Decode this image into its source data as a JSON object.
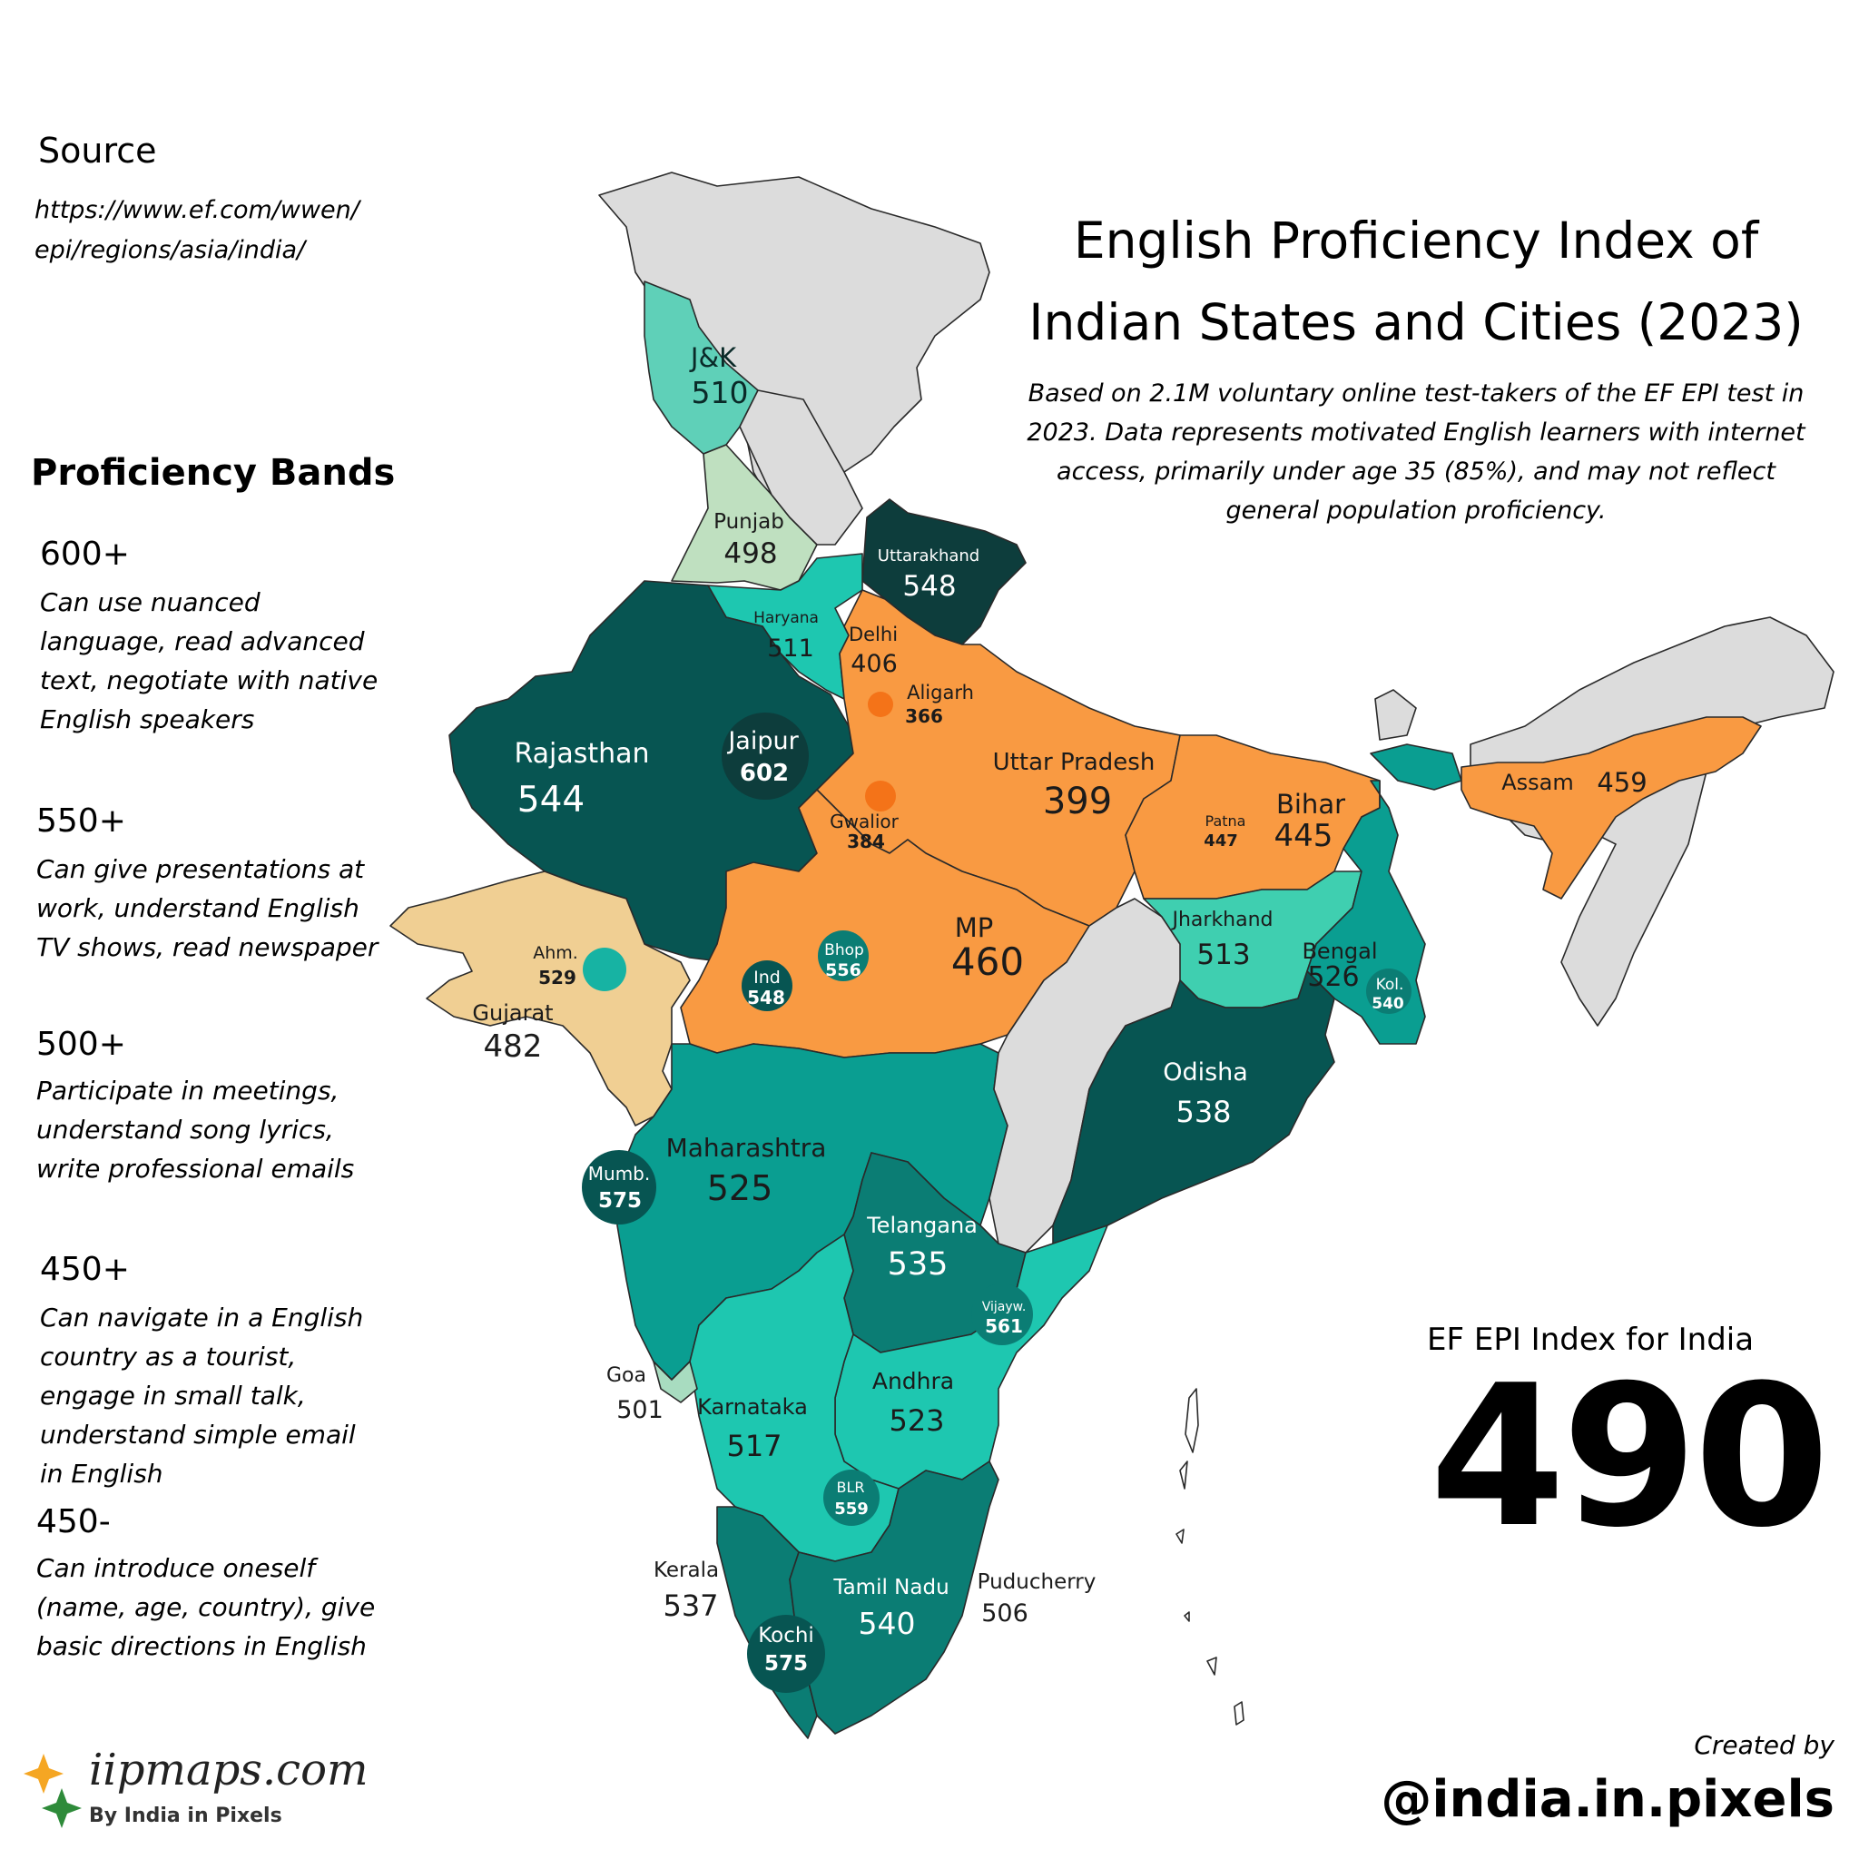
{
  "title": "English Proficiency Index of Indian States and Cities (2023)",
  "subtitle": "Based on 2.1M voluntary online test-takers of the EF EPI test in 2023. Data represents motivated English learners with internet access, primarily under age 35 (85%), and may not reflect general population proficiency.",
  "source": {
    "heading": "Source",
    "url": "https://www.ef.com/wwen/ epi/regions/asia/india/"
  },
  "bands": {
    "heading": "Proficiency Bands",
    "items": [
      {
        "level": "600+",
        "desc": "Can use nuanced language, read advanced text, negotiate with native English speakers"
      },
      {
        "level": "550+",
        "desc": "Can give presentations at work, understand English TV shows, read newspaper"
      },
      {
        "level": "500+",
        "desc": "Participate in meetings, understand song lyrics, write professional emails"
      },
      {
        "level": "450+",
        "desc": "Can navigate in a English country as a tourist, engage in small talk, understand simple email in English"
      },
      {
        "level": "450-",
        "desc": "Can introduce oneself (name, age, country), give basic directions in English"
      }
    ]
  },
  "colors": {
    "band_600": "#0d3d3c",
    "band_550": "#075552",
    "band_525": "#0a9e91",
    "band_500": "#1ec7b0",
    "band_500_light": "#5fd0b8",
    "punjab": "#bfe0c0",
    "gujarat": "#f0cf93",
    "band_450": "#f99a42",
    "aligarh_dot": "#f47318",
    "no_data": "#dcdcdc"
  },
  "india_index": {
    "label": "EF EPI Index for India",
    "value": "490"
  },
  "states": [
    {
      "name": "J&K",
      "score": "510"
    },
    {
      "name": "Punjab",
      "score": "498"
    },
    {
      "name": "Uttarakhand",
      "score": "548"
    },
    {
      "name": "Haryana",
      "score": "511"
    },
    {
      "name": "Delhi",
      "score": "406"
    },
    {
      "name": "Rajasthan",
      "score": "544"
    },
    {
      "name": "Uttar Pradesh",
      "score": "399"
    },
    {
      "name": "Bihar",
      "score": "445"
    },
    {
      "name": "Assam",
      "score": "459"
    },
    {
      "name": "Gujarat",
      "score": "482"
    },
    {
      "name": "MP",
      "score": "460"
    },
    {
      "name": "Jharkhand",
      "score": "513"
    },
    {
      "name": "Bengal",
      "score": "526"
    },
    {
      "name": "Odisha",
      "score": "538"
    },
    {
      "name": "Maharashtra",
      "score": "525"
    },
    {
      "name": "Telangana",
      "score": "535"
    },
    {
      "name": "Andhra",
      "score": "523"
    },
    {
      "name": "Karnataka",
      "score": "517"
    },
    {
      "name": "Goa",
      "score": "501"
    },
    {
      "name": "Kerala",
      "score": "537"
    },
    {
      "name": "Tamil Nadu",
      "score": "540"
    },
    {
      "name": "Puducherry",
      "score": "506"
    }
  ],
  "cities": [
    {
      "name": "Jaipur",
      "score": "602"
    },
    {
      "name": "Aligarh",
      "score": "366"
    },
    {
      "name": "Gwalior",
      "score": "384"
    },
    {
      "name": "Patna",
      "score": "447"
    },
    {
      "name": "Ahm.",
      "score": "529"
    },
    {
      "name": "Ind",
      "score": "548"
    },
    {
      "name": "Bhop",
      "score": "556"
    },
    {
      "name": "Kol.",
      "score": "540"
    },
    {
      "name": "Mumb.",
      "score": "575"
    },
    {
      "name": "Vijayw.",
      "score": "561"
    },
    {
      "name": "BLR",
      "score": "559"
    },
    {
      "name": "Kochi",
      "score": "575"
    }
  ],
  "credit": {
    "created_by": "Created by",
    "handle": "@india.in.pixels"
  },
  "logo": {
    "name": "iipmaps.com",
    "tagline": "By India in Pixels"
  }
}
